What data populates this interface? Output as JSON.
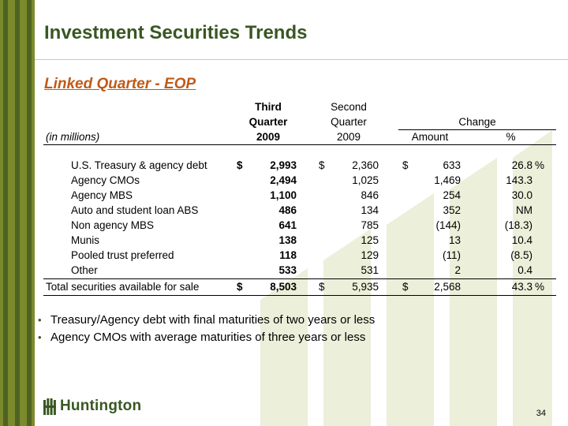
{
  "slide": {
    "title": "Investment Securities Trends",
    "subtitle": "Linked Quarter - EOP",
    "page_number": "34",
    "colors": {
      "sidebar": "#7a8a2c",
      "title": "#395723",
      "subtitle": "#c05a17",
      "watermark": "#ecefd9"
    }
  },
  "table": {
    "units_label": "(in millions)",
    "headers": {
      "col1": [
        "Third",
        "Quarter",
        "2009"
      ],
      "col2": [
        "Second",
        "Quarter",
        "2009"
      ],
      "change": "Change",
      "amount": "Amount",
      "pct": "%"
    },
    "rows": [
      {
        "label": "U.S. Treasury & agency debt",
        "q3_cur": "$",
        "q3": "2,993",
        "q2_cur": "$",
        "q2": "2,360",
        "amt_cur": "$",
        "amount": "633",
        "pct": "26.8",
        "pct_sym": "%"
      },
      {
        "label": "Agency CMOs",
        "q3_cur": "",
        "q3": "2,494",
        "q2_cur": "",
        "q2": "1,025",
        "amt_cur": "",
        "amount": "1,469",
        "pct": "143.3",
        "pct_sym": ""
      },
      {
        "label": "Agency MBS",
        "q3_cur": "",
        "q3": "1,100",
        "q2_cur": "",
        "q2": "846",
        "amt_cur": "",
        "amount": "254",
        "pct": "30.0",
        "pct_sym": ""
      },
      {
        "label": "Auto and student loan ABS",
        "q3_cur": "",
        "q3": "486",
        "q2_cur": "",
        "q2": "134",
        "amt_cur": "",
        "amount": "352",
        "pct": "NM",
        "pct_sym": ""
      },
      {
        "label": "Non agency MBS",
        "q3_cur": "",
        "q3": "641",
        "q2_cur": "",
        "q2": "785",
        "amt_cur": "",
        "amount": "(144)",
        "pct": "(18.3)",
        "pct_sym": ""
      },
      {
        "label": "Munis",
        "q3_cur": "",
        "q3": "138",
        "q2_cur": "",
        "q2": "125",
        "amt_cur": "",
        "amount": "13",
        "pct": "10.4",
        "pct_sym": ""
      },
      {
        "label": "Pooled trust preferred",
        "q3_cur": "",
        "q3": "118",
        "q2_cur": "",
        "q2": "129",
        "amt_cur": "",
        "amount": "(11)",
        "pct": "(8.5)",
        "pct_sym": ""
      },
      {
        "label": "Other",
        "q3_cur": "",
        "q3": "533",
        "q2_cur": "",
        "q2": "531",
        "amt_cur": "",
        "amount": "2",
        "pct": "0.4",
        "pct_sym": ""
      }
    ],
    "total": {
      "label": "Total securities available for sale",
      "q3_cur": "$",
      "q3": "8,503",
      "q2_cur": "$",
      "q2": "5,935",
      "amt_cur": "$",
      "amount": "2,568",
      "pct": "43.3",
      "pct_sym": "%"
    }
  },
  "bullets": [
    "Treasury/Agency debt with final maturities of two years or less",
    "Agency CMOs with average maturities of three years or less"
  ],
  "logo": {
    "text": "Huntington",
    "icon": "huntington-logo-icon"
  }
}
